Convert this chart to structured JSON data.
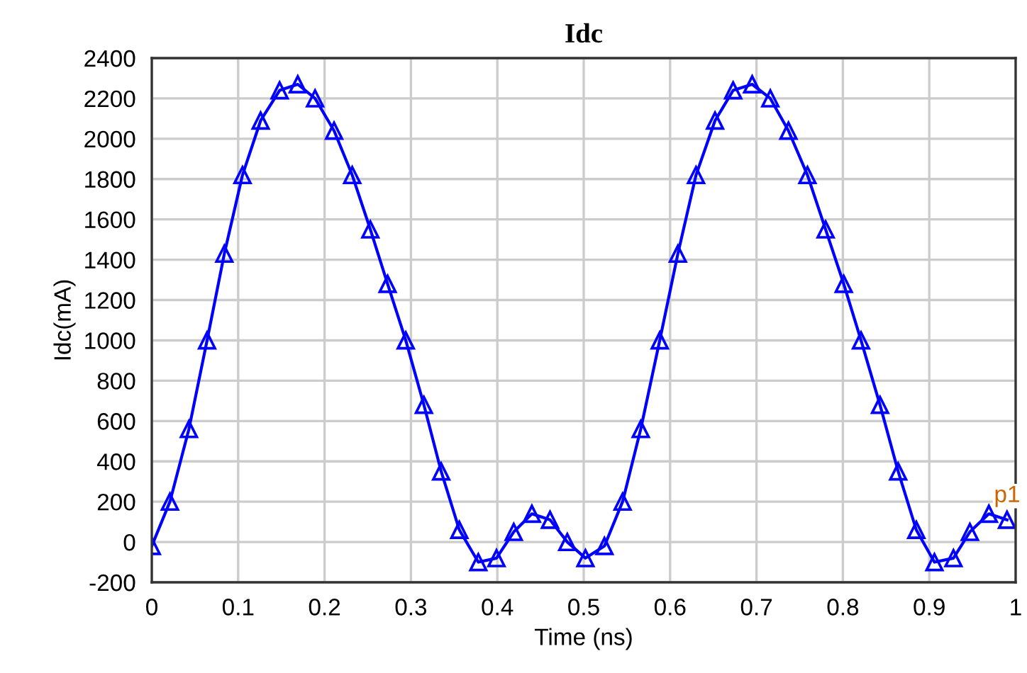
{
  "chart_data": {
    "type": "line",
    "title": "Idc",
    "xlabel": "Time (ns)",
    "ylabel": "Idc(mA)",
    "series": [
      {
        "color": "#0000ff",
        "marker": "triangle",
        "line_style": "solid",
        "x": [
          0,
          0.021,
          0.043,
          0.064,
          0.084,
          0.105,
          0.126,
          0.148,
          0.169,
          0.189,
          0.211,
          0.232,
          0.253,
          0.273,
          0.294,
          0.315,
          0.335,
          0.356,
          0.378,
          0.399,
          0.419,
          0.44,
          0.461,
          0.481,
          0.502,
          0.524,
          0.545,
          0.566,
          0.588,
          0.609,
          0.63,
          0.652,
          0.673,
          0.695,
          0.716,
          0.737,
          0.759,
          0.78,
          0.801,
          0.821,
          0.843,
          0.864,
          0.885,
          0.906,
          0.928,
          0.947,
          0.969,
          0.99
        ],
        "values": [
          -20,
          200,
          560,
          1000,
          1430,
          1820,
          2090,
          2240,
          2270,
          2200,
          2040,
          1820,
          1550,
          1280,
          1000,
          680,
          350,
          60,
          -100,
          -80,
          50,
          140,
          110,
          0,
          -80,
          -20,
          200,
          560,
          1000,
          1430,
          1820,
          2090,
          2240,
          2270,
          2200,
          2040,
          1820,
          1550,
          1280,
          1000,
          680,
          350,
          60,
          -100,
          -80,
          50,
          140,
          110
        ]
      }
    ],
    "annotations": [
      {
        "text": "p1",
        "x": 1,
        "y": 100
      }
    ],
    "xlim": [
      0,
      1
    ],
    "xticks": [
      0,
      0.1,
      0.2,
      0.3,
      0.4,
      0.5,
      0.6,
      0.7,
      0.8,
      0.9,
      1
    ],
    "ylim": [
      -200,
      2400
    ],
    "yticks": [
      -200,
      0,
      200,
      400,
      600,
      800,
      1000,
      1200,
      1400,
      1600,
      1800,
      2000,
      2200,
      2400
    ],
    "grid": true,
    "legend": false
  }
}
